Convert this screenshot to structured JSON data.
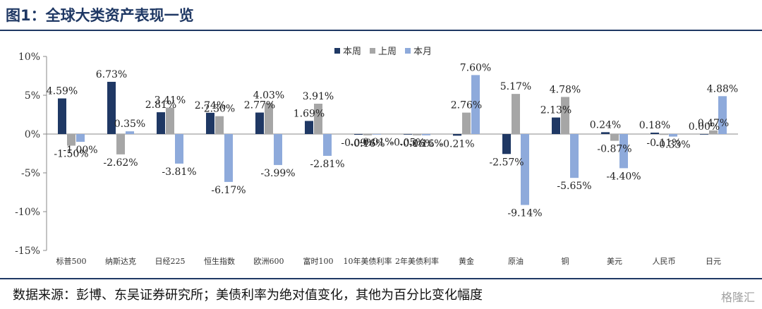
{
  "title": "图1：全球大类资产表现一览",
  "source": "数据来源：彭博、东吴证券研究所；美债利率为绝对值变化，其他为百分比变化幅度",
  "watermark": "格隆汇",
  "chart_data": {
    "type": "bar",
    "categories": [
      "标普500",
      "纳斯达克",
      "日经225",
      "恒生指数",
      "欧洲600",
      "富时100",
      "10年美债利率",
      "2年美债利率",
      "黄金",
      "原油",
      "铜",
      "美元",
      "人民币",
      "日元"
    ],
    "series": [
      {
        "name": "本周",
        "color": "#1f3864",
        "values": [
          4.59,
          6.73,
          2.81,
          2.74,
          2.77,
          1.69,
          -0.09,
          -0.05,
          -0.21,
          -2.57,
          2.13,
          0.24,
          0.18,
          0.0
        ]
      },
      {
        "name": "上周",
        "color": "#a6a6a6",
        "values": [
          -1.5,
          -2.62,
          3.41,
          2.3,
          4.03,
          3.91,
          -0.16,
          -0.16,
          2.76,
          5.17,
          4.78,
          -0.87,
          -0.11,
          0.47
        ]
      },
      {
        "name": "本月",
        "color": "#8eaadb",
        "values": [
          -1.0,
          0.35,
          -3.81,
          -6.17,
          -3.99,
          -2.81,
          -0.01,
          -0.16,
          7.6,
          -9.14,
          -5.65,
          -4.4,
          -0.33,
          4.88
        ]
      }
    ],
    "labels": [
      [
        "4.59%",
        "-1.50%",
        "-1.00%"
      ],
      [
        "6.73%",
        "-2.62%",
        "0.35%"
      ],
      [
        "2.81%",
        "3.41%",
        "-3.81%"
      ],
      [
        "2.74%",
        "2.30%",
        "-6.17%"
      ],
      [
        "2.77%",
        "4.03%",
        "-3.99%"
      ],
      [
        "1.69%",
        "3.91%",
        "-2.81%"
      ],
      [
        "-0.09%",
        "-0.16%",
        "-0.01%"
      ],
      [
        "-0.05%",
        "-0.16%",
        "-0.16%"
      ],
      [
        "-0.21%",
        "2.76%",
        "7.60%"
      ],
      [
        "-2.57%",
        "5.17%",
        "-9.14%"
      ],
      [
        "2.13%",
        "4.78%",
        "-5.65%"
      ],
      [
        "0.24%",
        "-0.87%",
        "-4.40%"
      ],
      [
        "0.18%",
        "-0.11%",
        "-0.33%"
      ],
      [
        "0.00%",
        "0.47%",
        "4.88%"
      ]
    ],
    "yticks": [
      10,
      5,
      0,
      -5,
      -10,
      -15
    ],
    "ytick_labels": [
      "10%",
      "5%",
      "0%",
      "-5%",
      "-10%",
      "-15%"
    ],
    "ylim": [
      -15,
      10
    ],
    "legend_position": "top-center",
    "grid": false
  }
}
